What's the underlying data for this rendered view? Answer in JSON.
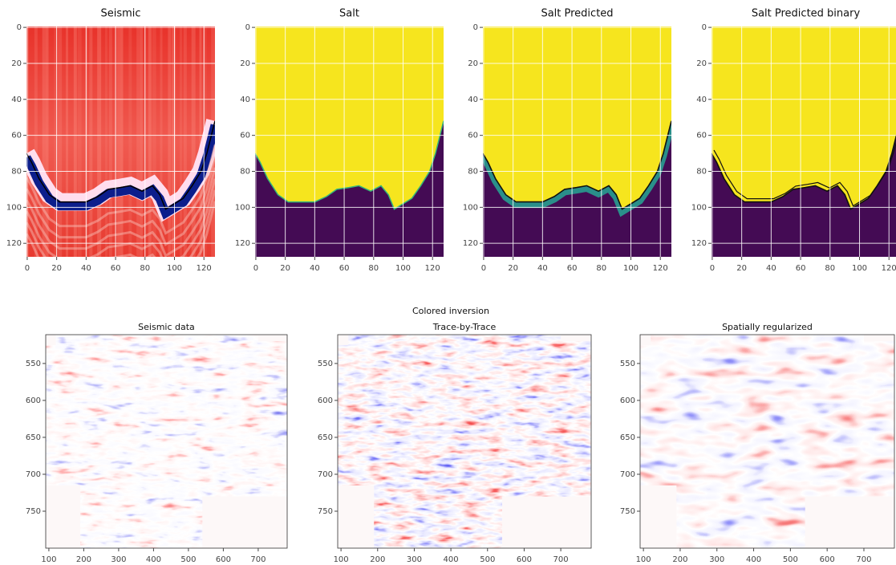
{
  "figure_title": "Colored inversion",
  "chart_data": [
    {
      "type": "image",
      "title": "Seismic",
      "xlim": [
        -0.5,
        127.5
      ],
      "ylim": [
        127.5,
        -0.5
      ],
      "xticks": [
        0,
        20,
        40,
        60,
        80,
        100,
        120
      ],
      "yticks": [
        0,
        20,
        40,
        60,
        80,
        100,
        120
      ],
      "grid": true
    },
    {
      "type": "image",
      "title": "Salt",
      "xlim": [
        -0.5,
        127.5
      ],
      "ylim": [
        127.5,
        -0.5
      ],
      "xticks": [
        0,
        20,
        40,
        60,
        80,
        100,
        120
      ],
      "yticks": [
        0,
        20,
        40,
        60,
        80,
        100,
        120
      ],
      "grid": true
    },
    {
      "type": "image",
      "title": "Salt Predicted",
      "xlim": [
        -0.5,
        127.5
      ],
      "ylim": [
        127.5,
        -0.5
      ],
      "xticks": [
        0,
        20,
        40,
        60,
        80,
        100,
        120
      ],
      "yticks": [
        0,
        20,
        40,
        60,
        80,
        100,
        120
      ],
      "grid": true
    },
    {
      "type": "image",
      "title": "Salt Predicted binary",
      "xlim": [
        -0.5,
        127.5
      ],
      "ylim": [
        127.5,
        -0.5
      ],
      "xticks": [
        0,
        20,
        40,
        60,
        80,
        100,
        120
      ],
      "yticks": [
        0,
        20,
        40,
        60,
        80,
        100,
        120
      ],
      "grid": true
    },
    {
      "type": "image",
      "title": "Seismic data",
      "xlim": [
        91,
        783
      ],
      "ylim": [
        800,
        511
      ],
      "xticks": [
        100,
        200,
        300,
        400,
        500,
        600,
        700
      ],
      "yticks": [
        550,
        600,
        650,
        700,
        750
      ],
      "grid": false
    },
    {
      "type": "image",
      "title": "Trace-by-Trace",
      "xlim": [
        91,
        783
      ],
      "ylim": [
        800,
        511
      ],
      "xticks": [
        100,
        200,
        300,
        400,
        500,
        600,
        700
      ],
      "yticks": [
        550,
        600,
        650,
        700,
        750
      ],
      "grid": false
    },
    {
      "type": "image",
      "title": "Spatially regularized",
      "xlim": [
        91,
        783
      ],
      "ylim": [
        800,
        511
      ],
      "xticks": [
        100,
        200,
        300,
        400,
        500,
        600,
        700
      ],
      "yticks": [
        550,
        600,
        650,
        700,
        750
      ],
      "grid": false
    }
  ]
}
